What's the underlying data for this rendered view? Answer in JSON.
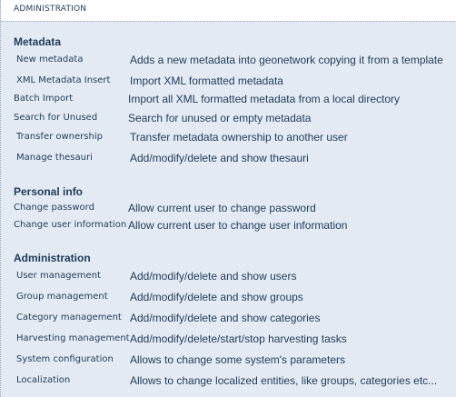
{
  "header": {
    "title": "ADMINISTRATION"
  },
  "sections": [
    {
      "title": "Metadata",
      "items": [
        {
          "label": "New metadata",
          "description": "Adds a new metadata into geonetwork copying it from a template"
        },
        {
          "label": "XML Metadata Insert",
          "description": "Import XML formatted metadata"
        },
        {
          "label": "Batch Import",
          "description": "Import all XML formatted metadata from a local directory"
        },
        {
          "label": "Search for Unused",
          "description": "Search for unused or empty metadata"
        },
        {
          "label": "Transfer ownership",
          "description": "Transfer metadata ownership to another user"
        },
        {
          "label": "Manage thesauri",
          "description": "Add/modify/delete and show thesauri"
        }
      ]
    },
    {
      "title": "Personal info",
      "items": [
        {
          "label": "Change password",
          "description": "Allow current user to change password"
        },
        {
          "label": "Change user information",
          "description": "Allow current user to change user information"
        }
      ]
    },
    {
      "title": "Administration",
      "items": [
        {
          "label": "User management",
          "description": "Add/modify/delete and show users"
        },
        {
          "label": "Group management",
          "description": "Add/modify/delete and show groups"
        },
        {
          "label": "Category management",
          "description": "Add/modify/delete and show categories"
        },
        {
          "label": "Harvesting management",
          "description": "Add/modify/delete/start/stop harvesting tasks"
        },
        {
          "label": "System configuration",
          "description": "Allows to change some system's parameters"
        },
        {
          "label": "Localization",
          "description": "Allows to change localized entities, like groups, categories etc..."
        }
      ]
    }
  ]
}
